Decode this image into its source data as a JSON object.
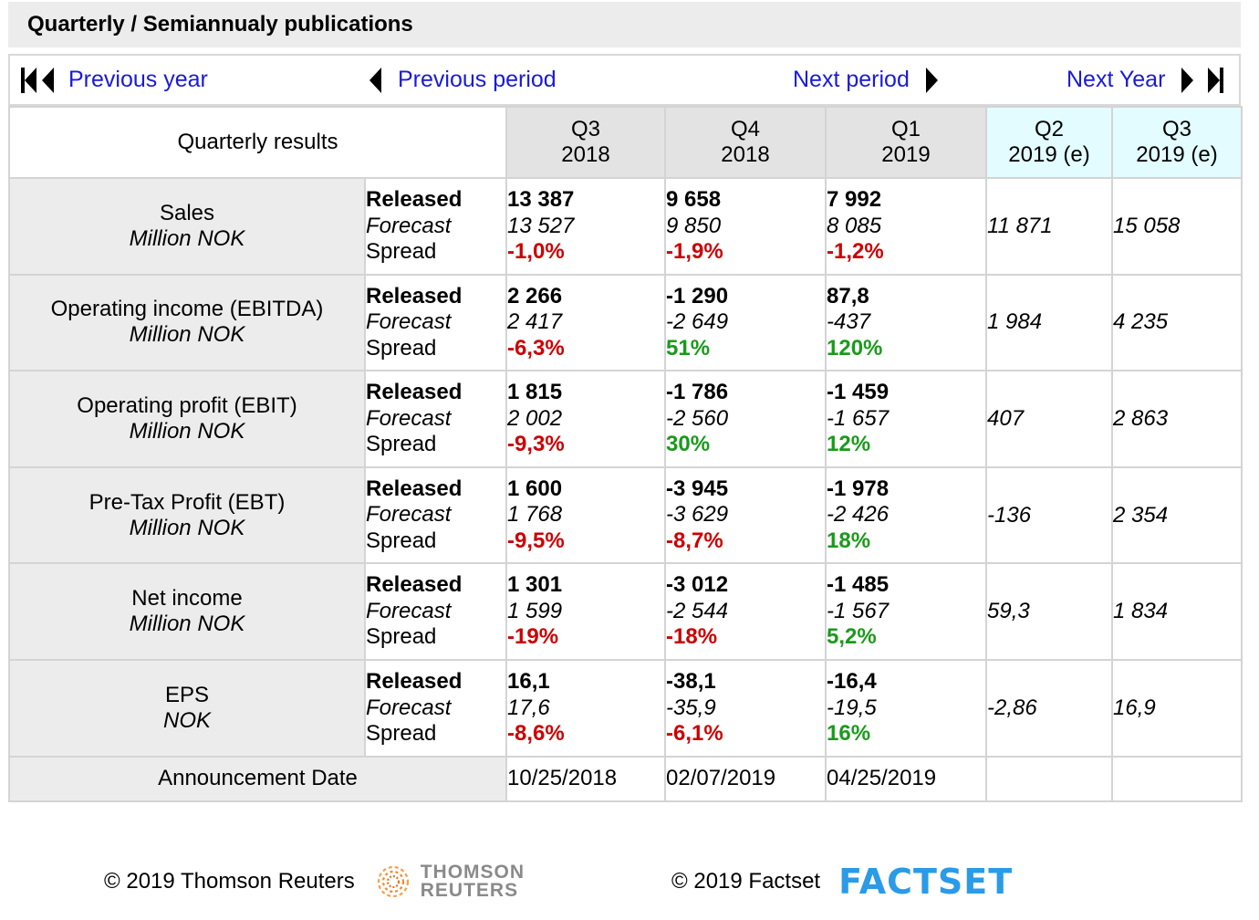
{
  "title": "Quarterly / Semiannualy publications",
  "nav": {
    "previous_year": "Previous year",
    "previous_period": "Previous period",
    "next_period": "Next period",
    "next_year": "Next Year"
  },
  "table": {
    "header_label": "Quarterly results",
    "periods": [
      {
        "quarter": "Q3",
        "year": "2018",
        "estimate": false
      },
      {
        "quarter": "Q4",
        "year": "2018",
        "estimate": false
      },
      {
        "quarter": "Q1",
        "year": "2019",
        "estimate": false
      },
      {
        "quarter": "Q2",
        "year": "2019 (e)",
        "estimate": true
      },
      {
        "quarter": "Q3",
        "year": "2019 (e)",
        "estimate": true
      }
    ],
    "row_kinds": {
      "released": "Released",
      "forecast": "Forecast",
      "spread": "Spread"
    },
    "rows": [
      {
        "name": "Sales",
        "unit": "Million NOK",
        "actuals": [
          {
            "released": "13 387",
            "forecast": "13 527",
            "spread": "-1,0%",
            "spread_positive": false
          },
          {
            "released": "9 658",
            "forecast": "9 850",
            "spread": "-1,9%",
            "spread_positive": false
          },
          {
            "released": "7 992",
            "forecast": "8 085",
            "spread": "-1,2%",
            "spread_positive": false
          }
        ],
        "estimates": [
          "11 871",
          "15 058"
        ]
      },
      {
        "name": "Operating income (EBITDA)",
        "unit": "Million NOK",
        "actuals": [
          {
            "released": "2 266",
            "forecast": "2 417",
            "spread": "-6,3%",
            "spread_positive": false
          },
          {
            "released": "-1 290",
            "forecast": "-2 649",
            "spread": "51%",
            "spread_positive": true
          },
          {
            "released": "87,8",
            "forecast": "-437",
            "spread": "120%",
            "spread_positive": true
          }
        ],
        "estimates": [
          "1 984",
          "4 235"
        ]
      },
      {
        "name": "Operating profit (EBIT)",
        "unit": "Million NOK",
        "actuals": [
          {
            "released": "1 815",
            "forecast": "2 002",
            "spread": "-9,3%",
            "spread_positive": false
          },
          {
            "released": "-1 786",
            "forecast": "-2 560",
            "spread": "30%",
            "spread_positive": true
          },
          {
            "released": "-1 459",
            "forecast": "-1 657",
            "spread": "12%",
            "spread_positive": true
          }
        ],
        "estimates": [
          "407",
          "2 863"
        ]
      },
      {
        "name": "Pre-Tax Profit (EBT)",
        "unit": "Million NOK",
        "actuals": [
          {
            "released": "1 600",
            "forecast": "1 768",
            "spread": "-9,5%",
            "spread_positive": false
          },
          {
            "released": "-3 945",
            "forecast": "-3 629",
            "spread": "-8,7%",
            "spread_positive": false
          },
          {
            "released": "-1 978",
            "forecast": "-2 426",
            "spread": "18%",
            "spread_positive": true
          }
        ],
        "estimates": [
          "-136",
          "2 354"
        ]
      },
      {
        "name": "Net income",
        "unit": "Million NOK",
        "actuals": [
          {
            "released": "1 301",
            "forecast": "1 599",
            "spread": "-19%",
            "spread_positive": false
          },
          {
            "released": "-3 012",
            "forecast": "-2 544",
            "spread": "-18%",
            "spread_positive": false
          },
          {
            "released": "-1 485",
            "forecast": "-1 567",
            "spread": "5,2%",
            "spread_positive": true
          }
        ],
        "estimates": [
          "59,3",
          "1 834"
        ]
      },
      {
        "name": "EPS",
        "unit": "NOK",
        "actuals": [
          {
            "released": "16,1",
            "forecast": "17,6",
            "spread": "-8,6%",
            "spread_positive": false
          },
          {
            "released": "-38,1",
            "forecast": "-35,9",
            "spread": "-6,1%",
            "spread_positive": false
          },
          {
            "released": "-16,4",
            "forecast": "-19,5",
            "spread": "16%",
            "spread_positive": true
          }
        ],
        "estimates": [
          "-2,86",
          "16,9"
        ]
      }
    ],
    "announcement_label": "Announcement Date",
    "announcement_dates": [
      "10/25/2018",
      "02/07/2019",
      "04/25/2019",
      "",
      ""
    ]
  },
  "footer": {
    "thomson_copyright": "© 2019 Thomson Reuters",
    "thomson_logo_text": [
      "THOMSON",
      "REUTERS"
    ],
    "factset_copyright": "© 2019 Factset",
    "factset_logo_text": "FACTSET"
  },
  "colors": {
    "link": "#1a1adb",
    "negative": "#cc0000",
    "positive": "#1a9a1a",
    "estimate_header_bg": "#e2fcff",
    "header_bg": "#e3e3e3",
    "label_bg": "#ececec",
    "factset_blue": "#2a9be6"
  }
}
